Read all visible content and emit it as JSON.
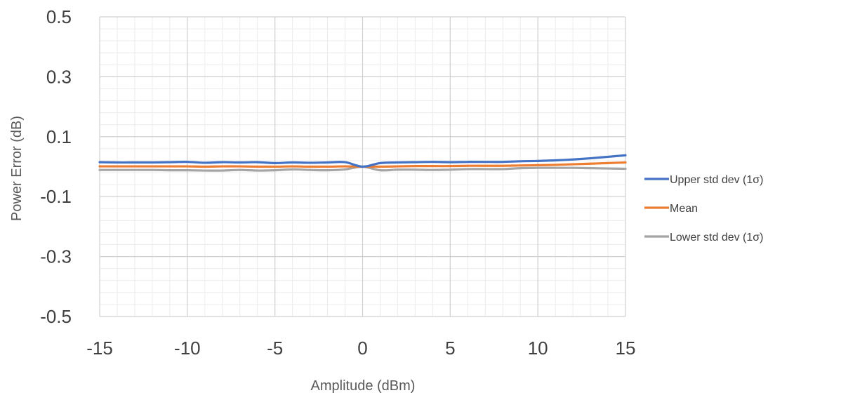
{
  "chart_data": {
    "type": "line",
    "title": "",
    "xlabel": "Amplitude (dBm)",
    "ylabel": "Power Error (dB)",
    "xlim": [
      -15,
      15
    ],
    "ylim": [
      -0.5,
      0.5
    ],
    "x_ticks": [
      -15,
      -10,
      -5,
      0,
      5,
      10,
      15
    ],
    "y_ticks": [
      -0.5,
      -0.3,
      -0.1,
      0.1,
      0.3,
      0.5
    ],
    "x_tick_labels": [
      "-15",
      "-10",
      "-5",
      "0",
      "5",
      "10",
      "15"
    ],
    "y_tick_labels": [
      "-0.5",
      "-0.3",
      "-0.1",
      "0.1",
      "0.3",
      "0.5"
    ],
    "grid": true,
    "legend_position": "right",
    "x": [
      -15,
      -14,
      -13,
      -12,
      -11,
      -10,
      -9,
      -8,
      -7,
      -6,
      -5,
      -4,
      -3,
      -2,
      -1,
      0,
      1,
      2,
      3,
      4,
      5,
      6,
      7,
      8,
      9,
      10,
      11,
      12,
      13,
      14,
      15
    ],
    "series": [
      {
        "name": "Upper std dev (1σ)",
        "color": "#4472C4",
        "values": [
          0.015,
          0.014,
          0.014,
          0.014,
          0.015,
          0.016,
          0.013,
          0.015,
          0.014,
          0.015,
          0.012,
          0.014,
          0.013,
          0.014,
          0.015,
          0.0,
          0.012,
          0.014,
          0.015,
          0.016,
          0.015,
          0.016,
          0.016,
          0.016,
          0.018,
          0.019,
          0.021,
          0.024,
          0.028,
          0.033,
          0.038
        ]
      },
      {
        "name": "Mean",
        "color": "#ED7D31",
        "values": [
          0.001,
          0.001,
          0.001,
          0.001,
          0.001,
          0.001,
          0.0,
          0.001,
          0.001,
          0.0,
          0.0,
          0.001,
          0.0,
          0.0,
          0.001,
          0.0,
          0.0,
          0.001,
          0.002,
          0.002,
          0.002,
          0.003,
          0.003,
          0.003,
          0.004,
          0.005,
          0.006,
          0.008,
          0.01,
          0.012,
          0.014
        ]
      },
      {
        "name": "Lower std dev (1σ)",
        "color": "#A5A5A5",
        "values": [
          -0.011,
          -0.011,
          -0.011,
          -0.011,
          -0.012,
          -0.012,
          -0.013,
          -0.013,
          -0.011,
          -0.013,
          -0.012,
          -0.009,
          -0.011,
          -0.012,
          -0.009,
          0.0,
          -0.012,
          -0.01,
          -0.01,
          -0.011,
          -0.01,
          -0.008,
          -0.008,
          -0.008,
          -0.005,
          -0.004,
          -0.004,
          -0.004,
          -0.005,
          -0.006,
          -0.007
        ]
      }
    ]
  }
}
